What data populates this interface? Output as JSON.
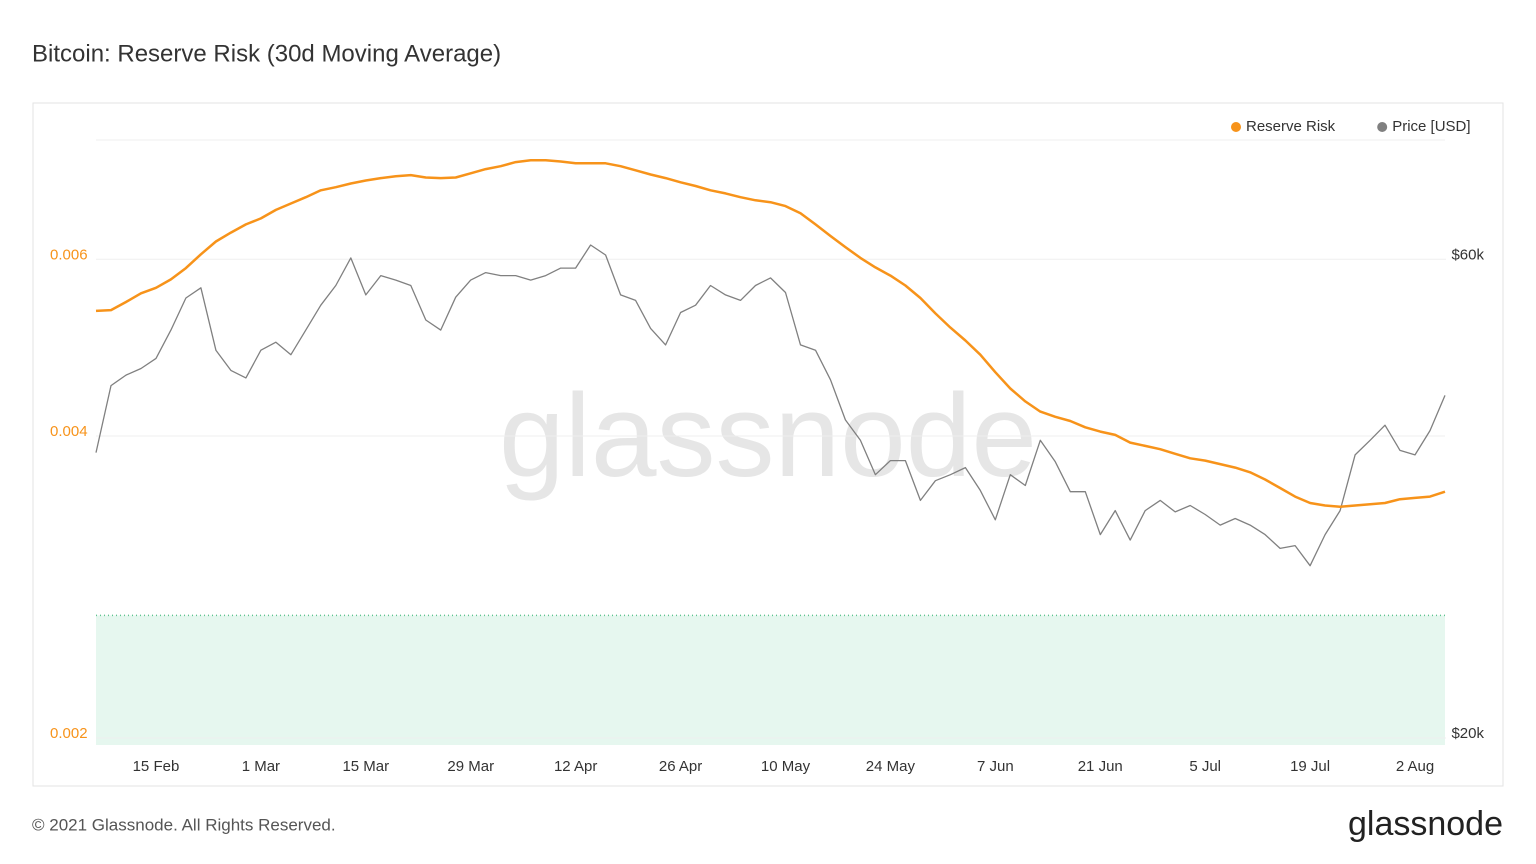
{
  "chart_data": {
    "type": "line",
    "title": "Bitcoin: Reserve Risk (30d Moving Average)",
    "categories": [
      null,
      null,
      null,
      null,
      "15 Feb",
      null,
      null,
      null,
      null,
      null,
      null,
      "1 Mar",
      null,
      null,
      null,
      null,
      null,
      null,
      "15 Mar",
      null,
      null,
      null,
      null,
      null,
      null,
      "29 Mar",
      null,
      null,
      null,
      null,
      null,
      null,
      "12 Apr",
      null,
      null,
      null,
      null,
      null,
      null,
      "26 Apr",
      null,
      null,
      null,
      null,
      null,
      null,
      "10 May",
      null,
      null,
      null,
      null,
      null,
      null,
      "24 May",
      null,
      null,
      null,
      null,
      null,
      null,
      "7 Jun",
      null,
      null,
      null,
      null,
      null,
      null,
      "21 Jun",
      null,
      null,
      null,
      null,
      null,
      null,
      "5 Jul",
      null,
      null,
      null,
      null,
      null,
      null,
      "19 Jul",
      null,
      null,
      null,
      null,
      null,
      null,
      "2 Aug",
      null,
      null
    ],
    "series": [
      {
        "name": "Reserve Risk",
        "color": "#f7931a",
        "values": [
          0.00533,
          0.00534,
          0.00544,
          0.00555,
          0.00562,
          0.00573,
          0.00588,
          0.00607,
          0.00625,
          0.00638,
          0.0065,
          0.00659,
          0.00672,
          0.00682,
          0.00692,
          0.00703,
          0.00708,
          0.00714,
          0.00719,
          0.00723,
          0.00726,
          0.00728,
          0.00724,
          0.00723,
          0.00724,
          0.00731,
          0.00738,
          0.00743,
          0.0075,
          0.00753,
          0.00753,
          0.00751,
          0.00748,
          0.00748,
          0.00748,
          0.00743,
          0.00736,
          0.00729,
          0.00723,
          0.00716,
          0.0071,
          0.00703,
          0.00698,
          0.00692,
          0.00687,
          0.00684,
          0.00678,
          0.00667,
          0.0065,
          0.00633,
          0.00617,
          0.00602,
          0.00589,
          0.00578,
          0.00565,
          0.00549,
          0.0053,
          0.00513,
          0.00498,
          0.00482,
          0.00463,
          0.00446,
          0.00433,
          0.00423,
          0.00418,
          0.00414,
          0.00408,
          0.00404,
          0.00401,
          0.00394,
          0.00391,
          0.00388,
          0.00384,
          0.0038,
          0.00378,
          0.00375,
          0.00372,
          0.00368,
          0.00362,
          0.00355,
          0.00348,
          0.00343,
          0.00341,
          0.0034,
          0.00341,
          0.00342,
          0.00343,
          0.00346,
          0.00347,
          0.00348,
          0.00352
        ]
      },
      {
        "name": "Price [USD]",
        "color": "#808080",
        "axis": "y2",
        "values": [
          38500,
          44900,
          46000,
          46700,
          47800,
          51000,
          54900,
          56200,
          48700,
          46500,
          45700,
          48700,
          49600,
          48200,
          51000,
          54000,
          56500,
          60200,
          55300,
          57800,
          57200,
          56500,
          52200,
          51000,
          55000,
          57200,
          58200,
          57800,
          57800,
          57200,
          57800,
          58800,
          58800,
          62000,
          60600,
          55300,
          54600,
          51200,
          49300,
          53100,
          54000,
          56500,
          55300,
          54600,
          56500,
          57500,
          55600,
          49300,
          48700,
          45500,
          41500,
          39600,
          36600,
          37800,
          37800,
          34500,
          36100,
          36600,
          37200,
          35300,
          33000,
          36600,
          35700,
          39600,
          37700,
          35200,
          35200,
          31900,
          33700,
          31500,
          33700,
          34500,
          33600,
          34100,
          33400,
          32600,
          33100,
          32600,
          31900,
          30900,
          31100,
          29700,
          31900,
          33700,
          38300,
          39600,
          41000,
          38700,
          38300,
          40500,
          43900
        ]
      }
    ],
    "log_scale": true,
    "ylim": [
      0.001968,
      0.00789
    ],
    "yticks": [
      0.002,
      0.004,
      0.006
    ],
    "y2lim": [
      19680,
      78900
    ],
    "y2ticks": [
      {
        "value": 20000,
        "label": "$20k"
      },
      {
        "value": 60000,
        "label": "$60k"
      }
    ],
    "grid": true,
    "legend": "top-right",
    "zone": {
      "max": 0.00265,
      "color": "#e6f7ef"
    }
  },
  "watermark": "glassnode",
  "footer": {
    "copyright": "© 2021 Glassnode. All Rights Reserved.",
    "logo": "glassnode"
  }
}
